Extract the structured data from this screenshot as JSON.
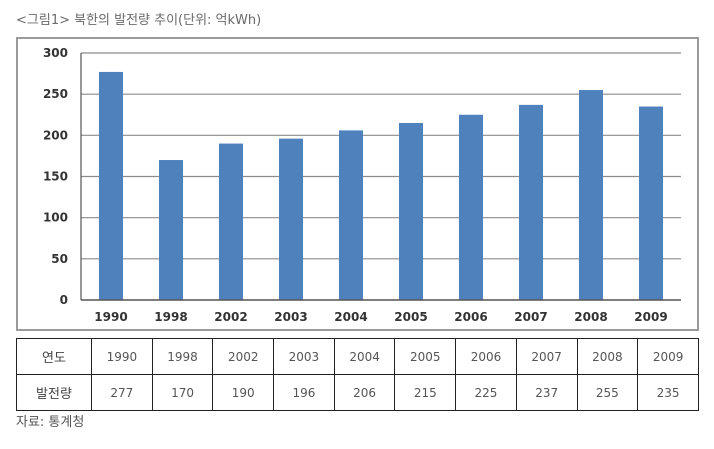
{
  "title": "<그림1> 북한의 발전량 추이(단위: 억kWh)",
  "source": "자료: 통계청",
  "colors": {
    "bar": "#4f81bd",
    "grid": "#8c8c8c",
    "axis": "#555555"
  },
  "chart_data": {
    "type": "bar",
    "title": "<그림1> 북한의 발전량 추이(단위: 억kWh)",
    "categories": [
      "1990",
      "1998",
      "2002",
      "2003",
      "2004",
      "2005",
      "2006",
      "2007",
      "2008",
      "2009"
    ],
    "values": [
      277,
      170,
      190,
      196,
      206,
      215,
      225,
      237,
      255,
      235
    ],
    "ylim": [
      0,
      300
    ],
    "yticks": [
      0,
      50,
      100,
      150,
      200,
      250,
      300
    ],
    "xlabel": "",
    "ylabel": "",
    "grid": true
  },
  "table": {
    "rows": [
      {
        "label": "연도",
        "cells": [
          "1990",
          "1998",
          "2002",
          "2003",
          "2004",
          "2005",
          "2006",
          "2007",
          "2008",
          "2009"
        ]
      },
      {
        "label": "발전량",
        "cells": [
          "277",
          "170",
          "190",
          "196",
          "206",
          "215",
          "225",
          "237",
          "255",
          "235"
        ]
      }
    ]
  }
}
